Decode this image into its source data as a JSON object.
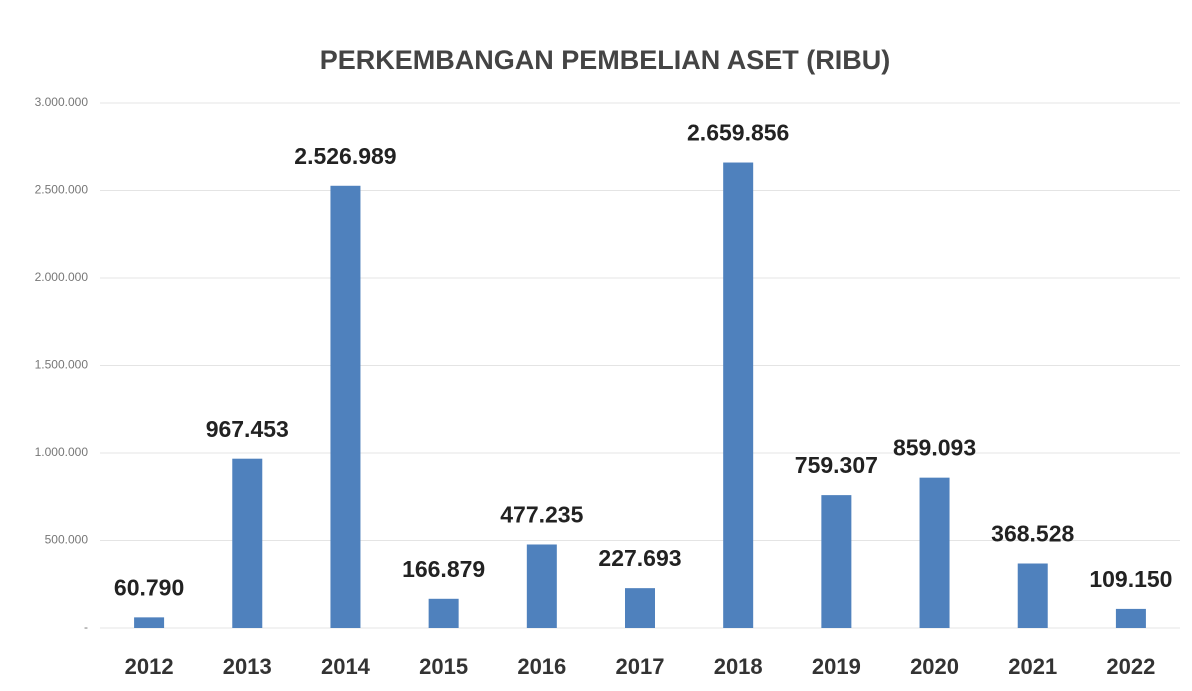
{
  "chart_data": {
    "type": "bar",
    "title": "PERKEMBANGAN PEMBELIAN ASET (RIBU)",
    "categories": [
      "2012",
      "2013",
      "2014",
      "2015",
      "2016",
      "2017",
      "2018",
      "2019",
      "2020",
      "2021",
      "2022"
    ],
    "values": [
      60790,
      967453,
      2526989,
      166879,
      477235,
      227693,
      2659856,
      759307,
      859093,
      368528,
      109150
    ],
    "value_labels": [
      "60.790",
      "967.453",
      "2.526.989",
      "166.879",
      "477.235",
      "227.693",
      "2.659.856",
      "759.307",
      "859.093",
      "368.528",
      "109.150"
    ],
    "color": "#4f81bd",
    "ylim": [
      0,
      3000000
    ],
    "yticks": [
      {
        "value": 0,
        "label": "-"
      },
      {
        "value": 500000,
        "label": "500.000"
      },
      {
        "value": 1000000,
        "label": "1.000.000"
      },
      {
        "value": 1500000,
        "label": "1.500.000"
      },
      {
        "value": 2000000,
        "label": "2.000.000"
      },
      {
        "value": 2500000,
        "label": "2.500.000"
      },
      {
        "value": 3000000,
        "label": "3.000.000"
      }
    ],
    "grid": true
  }
}
